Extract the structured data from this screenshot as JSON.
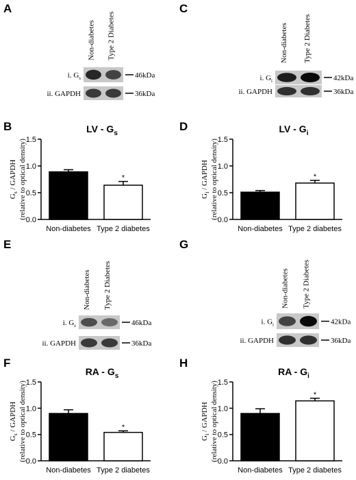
{
  "blots": [
    {
      "letter": "A",
      "columns": [
        "Non-diabetes",
        "Type 2 Diabetes"
      ],
      "rows": [
        {
          "label": "i. G",
          "sub": "s",
          "marker": "46kDa"
        },
        {
          "label": "ii. GAPDH",
          "marker": "36kDa"
        }
      ]
    },
    {
      "letter": "C",
      "columns": [
        "Non-diabetes",
        "Type 2 Diabetes"
      ],
      "rows": [
        {
          "label": "i. G",
          "sub": "i",
          "marker": "42kDa"
        },
        {
          "label": "ii. GAPDH",
          "marker": "36kDa"
        }
      ]
    },
    {
      "letter": "E",
      "columns": [
        "Non-diabetes",
        "Type 2 Diabetes"
      ],
      "rows": [
        {
          "label": "i. G",
          "sub": "s",
          "marker": "46kDa"
        },
        {
          "label": "ii. GAPDH",
          "marker": "36kDa"
        }
      ]
    },
    {
      "letter": "G",
      "columns": [
        "Non-diabetes",
        "Type 2 Diabetes"
      ],
      "rows": [
        {
          "label": "i. G",
          "sub": "i",
          "marker": "42kDa"
        },
        {
          "label": "ii. GAPDH",
          "marker": "36kDa"
        }
      ]
    }
  ],
  "chart_data": [
    {
      "type": "bar",
      "letter": "B",
      "title": "LV - G",
      "title_sub": "s",
      "ylabel": {
        "main": "G",
        "sub": "s",
        "rest": " / GAPDH"
      },
      "ylabel2": "(relative to optical density)",
      "categories": [
        "Non-diabetes",
        "Type 2 diabetes"
      ],
      "values": [
        0.89,
        0.64
      ],
      "errors": [
        0.04,
        0.07
      ],
      "colors": [
        "#000000",
        "#ffffff"
      ],
      "annotations": [
        null,
        "*"
      ],
      "ylim": [
        0,
        1.5
      ],
      "yticks": [
        {
          "value": 0,
          "label": "0.0"
        },
        0.5,
        {
          "value": 1,
          "label": "1.0"
        },
        1.5
      ]
    },
    {
      "type": "bar",
      "letter": "D",
      "title": "LV - G",
      "title_sub": "i",
      "ylabel": {
        "main": "G",
        "sub": "i",
        "rest": " / GAPDH"
      },
      "ylabel2": "(relative to optical density)",
      "categories": [
        "Non-diabetes",
        "Type 2 diabetes"
      ],
      "values": [
        0.51,
        0.68
      ],
      "errors": [
        0.03,
        0.05
      ],
      "colors": [
        "#000000",
        "#ffffff"
      ],
      "annotations": [
        null,
        "*"
      ],
      "ylim": [
        0,
        1.5
      ],
      "yticks": [
        {
          "value": 0,
          "label": "0.0"
        },
        0.5,
        {
          "value": 1,
          "label": "1.0"
        },
        1.5
      ]
    },
    {
      "type": "bar",
      "letter": "F",
      "title": "RA - G",
      "title_sub": "s",
      "ylabel": {
        "main": "G",
        "sub": "s",
        "rest": " / GAPDH"
      },
      "ylabel2": "(relative to optical density)",
      "categories": [
        "Non-diabetes",
        "Type 2 diabetes"
      ],
      "values": [
        0.9,
        0.54
      ],
      "errors": [
        0.07,
        0.03
      ],
      "colors": [
        "#000000",
        "#ffffff"
      ],
      "annotations": [
        null,
        "*"
      ],
      "ylim": [
        0,
        1.5
      ],
      "yticks": [
        {
          "value": 0,
          "label": "0.0"
        },
        0.5,
        {
          "value": 1,
          "label": "1.0"
        },
        1.5
      ]
    },
    {
      "type": "bar",
      "letter": "H",
      "title": "RA - G",
      "title_sub": "i",
      "ylabel": {
        "main": "G",
        "sub": "i",
        "rest": " / GAPDH"
      },
      "ylabel2": "(relative to optical density)",
      "categories": [
        "Non-diabetes",
        "Type 2 diabetes"
      ],
      "values": [
        0.9,
        1.14
      ],
      "errors": [
        0.09,
        0.05
      ],
      "colors": [
        "#000000",
        "#ffffff"
      ],
      "annotations": [
        null,
        "*"
      ],
      "ylim": [
        0,
        1.5
      ],
      "yticks": [
        {
          "value": 0,
          "label": "0.0"
        },
        0.5,
        {
          "value": 1,
          "label": "1.0"
        },
        1.5
      ]
    }
  ]
}
